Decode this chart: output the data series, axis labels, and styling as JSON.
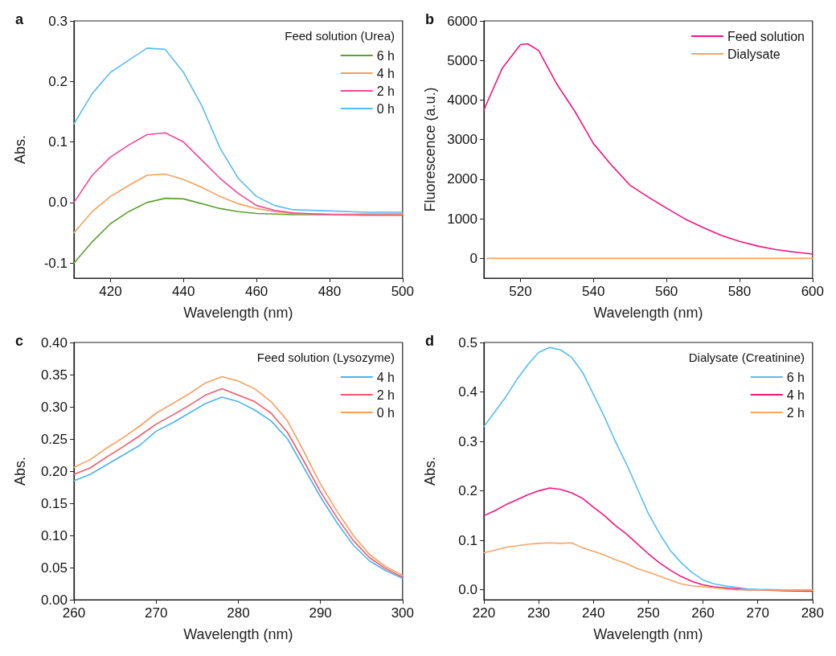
{
  "chart_data": [
    {
      "type": "line",
      "title": "a",
      "legend_title": "Feed solution (Urea)",
      "xlabel": "Wavelength (nm)",
      "ylabel": "Abs.",
      "x": [
        410,
        415,
        420,
        425,
        430,
        435,
        440,
        445,
        450,
        455,
        460,
        465,
        470,
        480,
        490,
        500
      ],
      "xlim": [
        410,
        500
      ],
      "xticks": [
        420,
        440,
        460,
        480,
        500
      ],
      "ylim": [
        -0.125,
        0.3
      ],
      "yticks": [
        -0.1,
        {
          "value": 0,
          "label": "0.0"
        },
        0.1,
        0.2,
        0.3
      ],
      "grid": false,
      "legend": "top right",
      "marker": "none",
      "line_style": "solid",
      "series": [
        {
          "name": "6 h",
          "color": "#5da02e",
          "values": [
            -0.1,
            -0.065,
            -0.035,
            -0.015,
            0.0,
            0.007,
            0.006,
            -0.002,
            -0.01,
            -0.015,
            -0.018,
            -0.019,
            -0.02,
            -0.02,
            -0.019,
            -0.019
          ]
        },
        {
          "name": "4 h",
          "color": "#f5a05a",
          "values": [
            -0.05,
            -0.015,
            0.01,
            0.028,
            0.045,
            0.047,
            0.038,
            0.025,
            0.01,
            -0.002,
            -0.01,
            -0.015,
            -0.018,
            -0.019,
            -0.02,
            -0.019
          ]
        },
        {
          "name": "2 h",
          "color": "#f0479b",
          "values": [
            0.0,
            0.045,
            0.075,
            0.095,
            0.112,
            0.115,
            0.1,
            0.07,
            0.04,
            0.015,
            -0.005,
            -0.013,
            -0.017,
            -0.02,
            -0.021,
            -0.021
          ]
        },
        {
          "name": "0 h",
          "color": "#5bbcf5",
          "values": [
            0.13,
            0.18,
            0.215,
            0.235,
            0.255,
            0.253,
            0.215,
            0.16,
            0.09,
            0.04,
            0.01,
            -0.005,
            -0.012,
            -0.014,
            -0.016,
            -0.016
          ]
        }
      ]
    },
    {
      "type": "line",
      "title": "b",
      "xlabel": "Wavelength (nm)",
      "ylabel": "Fluorescence (a.u.)",
      "xlim": [
        510,
        600
      ],
      "xticks": [
        520,
        540,
        560,
        580,
        600
      ],
      "ylim": [
        -500,
        6000
      ],
      "yticks": [
        0,
        1000,
        2000,
        3000,
        4000,
        5000,
        6000
      ],
      "grid": false,
      "legend": "top right",
      "marker": "none",
      "line_style": "solid",
      "series": [
        {
          "name": "Feed solution",
          "color": "#f0157f",
          "x": [
            510,
            515,
            520,
            522,
            525,
            530,
            535,
            540,
            545,
            550,
            555,
            560,
            565,
            570,
            575,
            580,
            585,
            590,
            595,
            600
          ],
          "values": [
            3750,
            4800,
            5400,
            5420,
            5250,
            4400,
            3700,
            2900,
            2350,
            1850,
            1550,
            1270,
            1000,
            780,
            580,
            430,
            310,
            220,
            160,
            110
          ]
        },
        {
          "name": "Dialysate",
          "color": "#f5a566",
          "x": [
            511,
            540,
            570,
            600
          ],
          "values": [
            0,
            0,
            0,
            0
          ]
        }
      ]
    },
    {
      "type": "line",
      "title": "c",
      "legend_title": "Feed solution (Lysozyme)",
      "xlabel": "Wavelength (nm)",
      "ylabel": "Abs.",
      "x": [
        260,
        262,
        264,
        266,
        268,
        270,
        272,
        274,
        276,
        278,
        280,
        282,
        284,
        286,
        288,
        290,
        292,
        294,
        296,
        298,
        300
      ],
      "xlim": [
        260,
        300
      ],
      "xticks": [
        260,
        270,
        280,
        290,
        300
      ],
      "ylim": [
        0,
        0.4
      ],
      "yticks": [
        {
          "value": 0,
          "label": "0.00"
        },
        0.05,
        {
          "value": 0.1,
          "label": "0.10"
        },
        0.15,
        {
          "value": 0.2,
          "label": "0.20"
        },
        0.25,
        {
          "value": 0.3,
          "label": "0.30"
        },
        0.35,
        {
          "value": 0.4,
          "label": "0.40"
        }
      ],
      "grid": false,
      "legend": "top right",
      "marker": "none",
      "line_style": "solid",
      "series": [
        {
          "name": "4 h",
          "color": "#4ab3f0",
          "values": [
            0.185,
            0.195,
            0.21,
            0.225,
            0.24,
            0.262,
            0.275,
            0.29,
            0.305,
            0.315,
            0.308,
            0.295,
            0.278,
            0.25,
            0.205,
            0.16,
            0.12,
            0.085,
            0.06,
            0.045,
            0.033
          ]
        },
        {
          "name": "2 h",
          "color": "#f05a6a",
          "values": [
            0.195,
            0.205,
            0.222,
            0.238,
            0.255,
            0.273,
            0.287,
            0.302,
            0.318,
            0.328,
            0.318,
            0.308,
            0.29,
            0.26,
            0.215,
            0.168,
            0.128,
            0.092,
            0.065,
            0.048,
            0.035
          ]
        },
        {
          "name": "0 h",
          "color": "#f5a060",
          "values": [
            0.206,
            0.218,
            0.236,
            0.252,
            0.27,
            0.29,
            0.305,
            0.32,
            0.337,
            0.347,
            0.34,
            0.328,
            0.308,
            0.278,
            0.23,
            0.18,
            0.138,
            0.1,
            0.07,
            0.051,
            0.038
          ]
        }
      ]
    },
    {
      "type": "line",
      "title": "d",
      "legend_title": "Dialysate (Creatinine)",
      "xlabel": "Wavelength (nm)",
      "ylabel": "Abs.",
      "x": [
        220,
        222,
        224,
        226,
        228,
        230,
        232,
        234,
        236,
        238,
        240,
        242,
        244,
        246,
        248,
        250,
        252,
        254,
        256,
        258,
        260,
        262,
        264,
        266,
        268,
        270,
        275,
        280
      ],
      "xlim": [
        220,
        280
      ],
      "xticks": [
        220,
        230,
        240,
        250,
        260,
        270,
        280
      ],
      "ylim": [
        -0.02,
        0.5
      ],
      "yticks": [
        {
          "value": 0,
          "label": "0.0"
        },
        0.1,
        0.2,
        0.3,
        0.4,
        0.5
      ],
      "grid": false,
      "legend": "top right",
      "marker": "none",
      "line_style": "solid",
      "series": [
        {
          "name": "6 h",
          "color": "#55bdf5",
          "values": [
            0.33,
            0.36,
            0.39,
            0.425,
            0.455,
            0.48,
            0.49,
            0.485,
            0.47,
            0.44,
            0.395,
            0.35,
            0.3,
            0.255,
            0.205,
            0.155,
            0.115,
            0.08,
            0.055,
            0.035,
            0.02,
            0.012,
            0.008,
            0.005,
            0.002,
            0.001,
            0.0,
            0.0
          ]
        },
        {
          "name": "4 h",
          "color": "#f0157f",
          "values": [
            0.15,
            0.16,
            0.172,
            0.182,
            0.192,
            0.2,
            0.206,
            0.203,
            0.196,
            0.185,
            0.167,
            0.15,
            0.13,
            0.113,
            0.093,
            0.073,
            0.055,
            0.04,
            0.027,
            0.017,
            0.01,
            0.006,
            0.004,
            0.002,
            0.0,
            0.0,
            -0.002,
            -0.003
          ]
        },
        {
          "name": "2 h",
          "color": "#f5a566",
          "values": [
            0.075,
            0.08,
            0.086,
            0.089,
            0.092,
            0.094,
            0.095,
            0.094,
            0.095,
            0.085,
            0.078,
            0.07,
            0.061,
            0.053,
            0.043,
            0.036,
            0.028,
            0.02,
            0.012,
            0.008,
            0.006,
            0.004,
            0.002,
            0.0,
            0.0,
            0.0,
            -0.001,
            -0.001
          ]
        }
      ]
    }
  ]
}
